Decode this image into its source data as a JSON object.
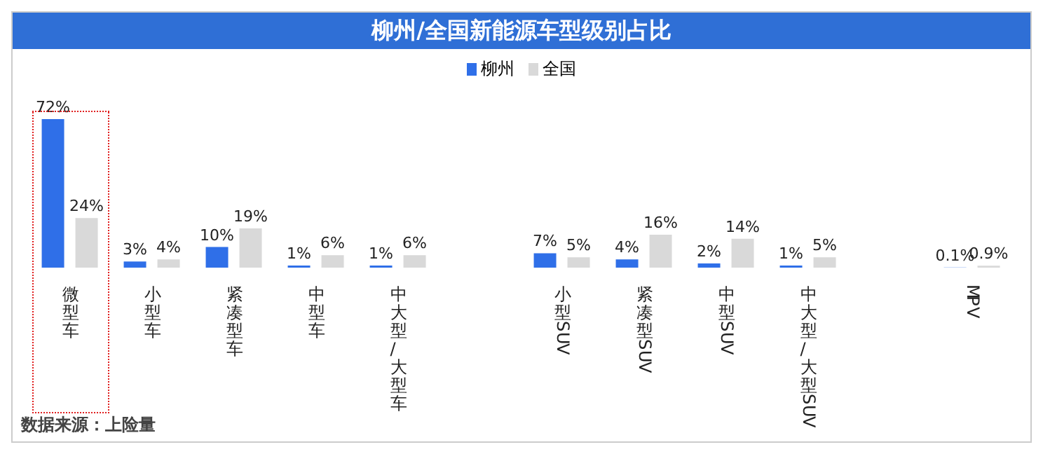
{
  "chart_data": {
    "type": "bar",
    "title": "柳州/全国新能源车型级别占比",
    "categories": [
      "微型车",
      "小型车",
      "紧凑型车",
      "中型车",
      "中大型/大型车",
      null,
      "小型SUV",
      "紧凑型SUV",
      "中型SUV",
      "中大型/大型SUV",
      null,
      "MPV"
    ],
    "series": [
      {
        "name": "柳州",
        "color": "#2f6fe8",
        "values": [
          72,
          3,
          10,
          1,
          1,
          null,
          7,
          4,
          2,
          1,
          null,
          0.1
        ],
        "value_labels": [
          "72%",
          "3%",
          "10%",
          "1%",
          "1%",
          null,
          "7%",
          "4%",
          "2%",
          "1%",
          null,
          "0.1%"
        ]
      },
      {
        "name": "全国",
        "color": "#d9d9d9",
        "values": [
          24,
          4,
          19,
          6,
          6,
          null,
          5,
          16,
          14,
          5,
          null,
          0.9
        ],
        "value_labels": [
          "24%",
          "4%",
          "19%",
          "6%",
          "6%",
          null,
          "5%",
          "16%",
          "14%",
          "5%",
          null,
          "0.9%"
        ]
      }
    ],
    "legend": "top",
    "annotations": [
      "数据来源：上险量"
    ]
  }
}
